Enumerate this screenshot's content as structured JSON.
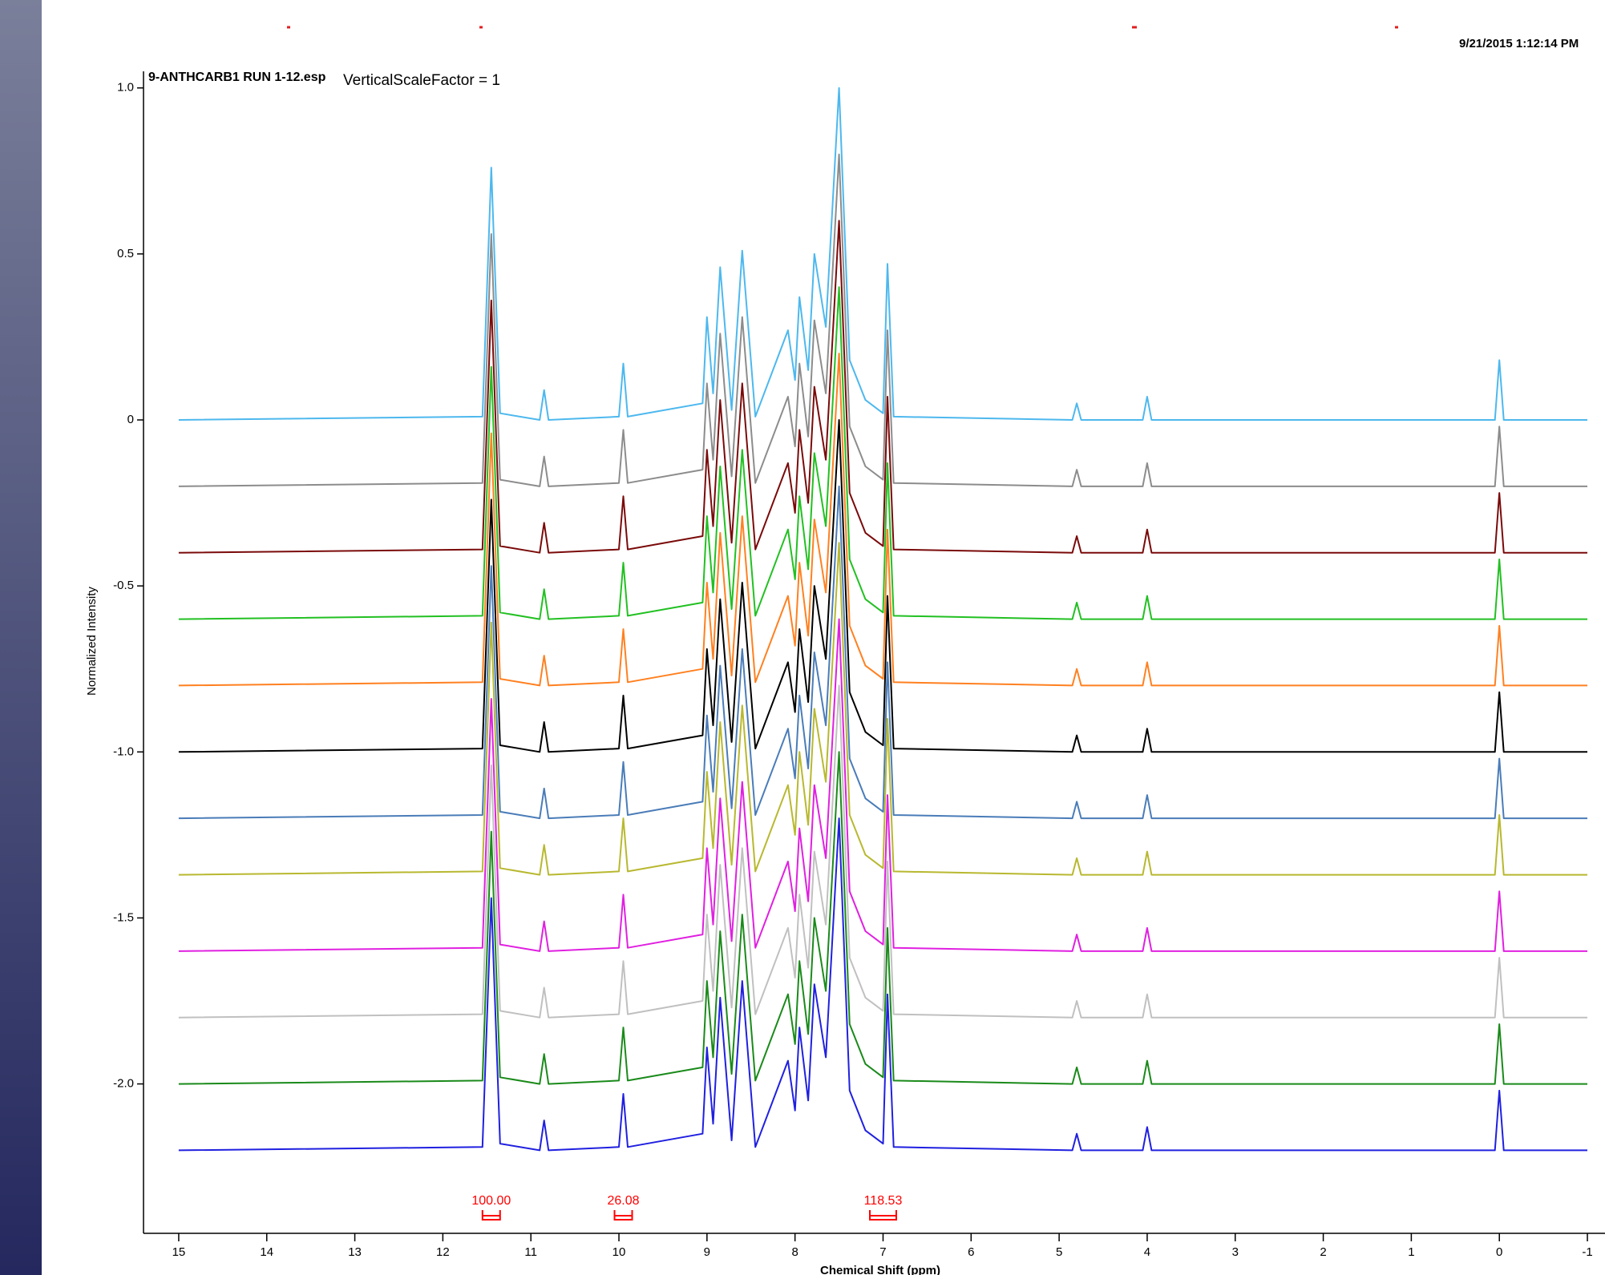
{
  "chart_data": {
    "type": "line",
    "title": "9-ANTHCARB1 RUN 1-12.esp",
    "subtitle": "VerticalScaleFactor = 1",
    "timestamp": "9/21/2015 1:12:14 PM",
    "x_label": "Chemical Shift (ppm)",
    "y_label": "Normalized Intensity",
    "xlim": [
      15.4,
      -1.2
    ],
    "ylim": [
      -2.45,
      1.05
    ],
    "xticks": [
      15,
      14,
      13,
      12,
      11,
      10,
      9,
      8,
      7,
      6,
      5,
      4,
      3,
      2,
      1,
      0,
      -1
    ],
    "yticks": [
      {
        "value": 1,
        "label": "1.0"
      },
      0.5,
      0,
      -0.5,
      {
        "value": -1,
        "label": "-1.0"
      },
      -1.5,
      {
        "value": -2,
        "label": "-2.0"
      }
    ],
    "x": [
      15,
      11.55,
      11.45,
      11.35,
      10.9,
      10.85,
      10.8,
      10.0,
      9.95,
      9.9,
      9.05,
      9.0,
      8.93,
      8.85,
      8.72,
      8.6,
      8.45,
      8.08,
      8.0,
      7.95,
      7.85,
      7.78,
      7.65,
      7.5,
      7.38,
      7.2,
      7.0,
      6.95,
      6.88,
      4.85,
      4.8,
      4.75,
      4.05,
      4.0,
      3.95,
      0.05,
      0,
      -0.05,
      -1
    ],
    "series": [
      {
        "color": "#4db8ee",
        "values": [
          0,
          0.01,
          0.76,
          0.02,
          0,
          0.09,
          0,
          0.01,
          0.17,
          0.01,
          0.05,
          0.31,
          0.08,
          0.46,
          0.03,
          0.51,
          0.01,
          0.27,
          0.12,
          0.37,
          0.15,
          0.5,
          0.28,
          1.0,
          0.18,
          0.06,
          0.02,
          0.47,
          0.01,
          0,
          0.05,
          0,
          0,
          0.07,
          0,
          0,
          0.18,
          0,
          0
        ]
      },
      {
        "color": "#8c8c8c",
        "values": [
          -0.2,
          -0.19,
          0.56,
          -0.18,
          -0.2,
          -0.11,
          -0.2,
          -0.19,
          -0.03,
          -0.19,
          -0.15,
          0.11,
          -0.12,
          0.26,
          -0.17,
          0.31,
          -0.19,
          0.07,
          -0.08,
          0.17,
          -0.05,
          0.3,
          0.08,
          0.8,
          -0.02,
          -0.14,
          -0.18,
          0.27,
          -0.19,
          -0.2,
          -0.15,
          -0.2,
          -0.2,
          -0.13,
          -0.2,
          -0.2,
          -0.02,
          -0.2,
          -0.2
        ]
      },
      {
        "color": "#7a0a0a",
        "values": [
          -0.4,
          -0.39,
          0.36,
          -0.38,
          -0.4,
          -0.31,
          -0.4,
          -0.39,
          -0.23,
          -0.39,
          -0.35,
          -0.09,
          -0.32,
          0.06,
          -0.37,
          0.11,
          -0.39,
          -0.13,
          -0.28,
          -0.03,
          -0.25,
          0.1,
          -0.12,
          0.6,
          -0.22,
          -0.34,
          -0.38,
          0.07,
          -0.39,
          -0.4,
          -0.35,
          -0.4,
          -0.4,
          -0.33,
          -0.4,
          -0.4,
          -0.22,
          -0.4,
          -0.4
        ]
      },
      {
        "color": "#22c022",
        "values": [
          -0.6,
          -0.59,
          0.16,
          -0.58,
          -0.6,
          -0.51,
          -0.6,
          -0.59,
          -0.43,
          -0.59,
          -0.55,
          -0.29,
          -0.52,
          -0.14,
          -0.57,
          -0.09,
          -0.59,
          -0.33,
          -0.48,
          -0.23,
          -0.45,
          -0.1,
          -0.32,
          0.4,
          -0.42,
          -0.54,
          -0.58,
          -0.13,
          -0.59,
          -0.6,
          -0.55,
          -0.6,
          -0.6,
          -0.53,
          -0.6,
          -0.6,
          -0.42,
          -0.6,
          -0.6
        ]
      },
      {
        "color": "#ff8020",
        "values": [
          -0.8,
          -0.79,
          -0.04,
          -0.78,
          -0.8,
          -0.71,
          -0.8,
          -0.79,
          -0.63,
          -0.79,
          -0.75,
          -0.49,
          -0.72,
          -0.34,
          -0.77,
          -0.29,
          -0.79,
          -0.53,
          -0.68,
          -0.43,
          -0.65,
          -0.3,
          -0.52,
          0.2,
          -0.62,
          -0.74,
          -0.78,
          -0.33,
          -0.79,
          -0.8,
          -0.75,
          -0.8,
          -0.8,
          -0.73,
          -0.8,
          -0.8,
          -0.62,
          -0.8,
          -0.8
        ]
      },
      {
        "color": "#000000",
        "values": [
          -1,
          -0.99,
          -0.24,
          -0.98,
          -1,
          -0.91,
          -1,
          -0.99,
          -0.83,
          -0.99,
          -0.95,
          -0.69,
          -0.92,
          -0.54,
          -0.97,
          -0.49,
          -0.99,
          -0.73,
          -0.88,
          -0.63,
          -0.85,
          -0.5,
          -0.72,
          0,
          -0.82,
          -0.94,
          -0.98,
          -0.53,
          -0.99,
          -1,
          -0.95,
          -1,
          -1,
          -0.93,
          -1,
          -1,
          -0.82,
          -1,
          -1
        ]
      },
      {
        "color": "#4a7cb8",
        "values": [
          -1.2,
          -1.19,
          -0.44,
          -1.18,
          -1.2,
          -1.11,
          -1.2,
          -1.19,
          -1.03,
          -1.19,
          -1.15,
          -0.89,
          -1.12,
          -0.74,
          -1.17,
          -0.69,
          -1.19,
          -0.93,
          -1.08,
          -0.83,
          -1.05,
          -0.7,
          -0.92,
          -0.2,
          -1.02,
          -1.14,
          -1.18,
          -0.73,
          -1.19,
          -1.2,
          -1.15,
          -1.2,
          -1.2,
          -1.13,
          -1.2,
          -1.2,
          -1.02,
          -1.2,
          -1.2
        ]
      },
      {
        "color": "#b8b830",
        "values": [
          -1.37,
          -1.36,
          -0.61,
          -1.35,
          -1.37,
          -1.28,
          -1.37,
          -1.36,
          -1.2,
          -1.36,
          -1.32,
          -1.06,
          -1.29,
          -0.91,
          -1.34,
          -0.86,
          -1.36,
          -1.1,
          -1.25,
          -1,
          -1.22,
          -0.87,
          -1.09,
          -0.37,
          -1.19,
          -1.31,
          -1.35,
          -0.9,
          -1.36,
          -1.37,
          -1.32,
          -1.37,
          -1.37,
          -1.3,
          -1.37,
          -1.37,
          -1.19,
          -1.37,
          -1.37
        ]
      },
      {
        "color": "#e020e0",
        "values": [
          -1.6,
          -1.59,
          -0.84,
          -1.58,
          -1.6,
          -1.51,
          -1.6,
          -1.59,
          -1.43,
          -1.59,
          -1.55,
          -1.29,
          -1.52,
          -1.14,
          -1.57,
          -1.09,
          -1.59,
          -1.33,
          -1.48,
          -1.23,
          -1.45,
          -1.1,
          -1.32,
          -0.6,
          -1.42,
          -1.54,
          -1.58,
          -1.13,
          -1.59,
          -1.6,
          -1.55,
          -1.6,
          -1.6,
          -1.53,
          -1.6,
          -1.6,
          -1.42,
          -1.6,
          -1.6
        ]
      },
      {
        "color": "#c0c0c0",
        "values": [
          -1.8,
          -1.79,
          -1.04,
          -1.78,
          -1.8,
          -1.71,
          -1.8,
          -1.79,
          -1.63,
          -1.79,
          -1.75,
          -1.49,
          -1.72,
          -1.34,
          -1.77,
          -1.29,
          -1.79,
          -1.53,
          -1.68,
          -1.43,
          -1.65,
          -1.3,
          -1.52,
          -0.8,
          -1.62,
          -1.74,
          -1.78,
          -1.33,
          -1.79,
          -1.8,
          -1.75,
          -1.8,
          -1.8,
          -1.73,
          -1.8,
          -1.8,
          -1.62,
          -1.8,
          -1.8
        ]
      },
      {
        "color": "#1a8a1a",
        "values": [
          -2,
          -1.99,
          -1.24,
          -1.98,
          -2,
          -1.91,
          -2,
          -1.99,
          -1.83,
          -1.99,
          -1.95,
          -1.69,
          -1.92,
          -1.54,
          -1.97,
          -1.49,
          -1.99,
          -1.73,
          -1.88,
          -1.63,
          -1.85,
          -1.5,
          -1.72,
          -1,
          -1.82,
          -1.94,
          -1.98,
          -1.53,
          -1.99,
          -2,
          -1.95,
          -2,
          -2,
          -1.93,
          -2,
          -2,
          -1.82,
          -2,
          -2
        ]
      },
      {
        "color": "#2020e0",
        "values": [
          -2.2,
          -2.19,
          -1.44,
          -2.18,
          -2.2,
          -2.11,
          -2.2,
          -2.19,
          -2.03,
          -2.19,
          -2.15,
          -1.89,
          -2.12,
          -1.74,
          -2.17,
          -1.69,
          -2.19,
          -1.93,
          -2.08,
          -1.83,
          -2.05,
          -1.7,
          -1.92,
          -1.2,
          -2.02,
          -2.14,
          -2.18,
          -1.73,
          -2.19,
          -2.2,
          -2.15,
          -2.2,
          -2.2,
          -2.13,
          -2.2,
          -2.2,
          -2.02,
          -2.2,
          -2.2
        ]
      }
    ],
    "integrals": [
      {
        "label": "100.00",
        "value": 100,
        "from": 11.55,
        "to": 11.35
      },
      {
        "label": "26.08",
        "value": 26.08,
        "from": 10.05,
        "to": 9.85
      },
      {
        "label": "118.53",
        "value": 118.53,
        "from": 7.15,
        "to": 6.85
      }
    ],
    "integral_color": "#ff0000"
  }
}
